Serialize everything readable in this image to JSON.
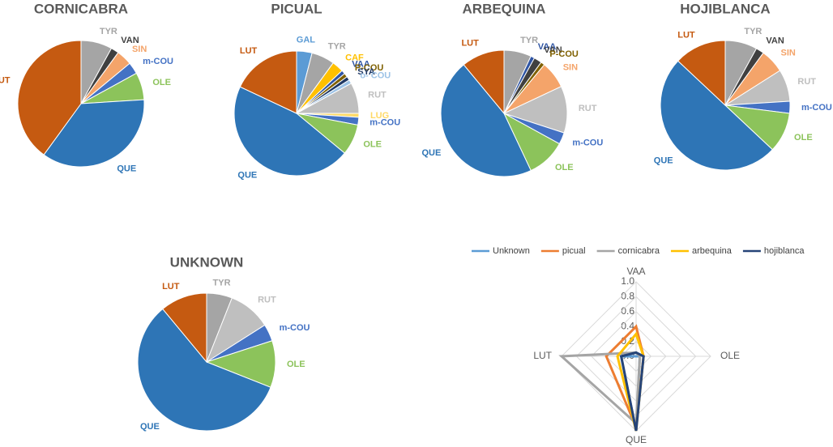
{
  "chart_data": [
    {
      "type": "pie",
      "title": "CORNICABRA",
      "categories": [
        "TYR",
        "VAN",
        "SIN",
        "m-COU",
        "OLE",
        "QUE",
        "LUT"
      ],
      "values": [
        8,
        2,
        4,
        3,
        7,
        36,
        40
      ],
      "colors": [
        "#a5a5a5",
        "#404040",
        "#f4a46a",
        "#4472c4",
        "#8cc35b",
        "#2e75b6",
        "#c55a11"
      ]
    },
    {
      "type": "pie",
      "title": "PICUAL",
      "categories": [
        "GAL",
        "TYR",
        "CAF",
        "VAA",
        "P-COU",
        "SYA",
        "o- COU",
        "RUT",
        "LUG",
        "m-COU",
        "OLE",
        "QUE",
        "LUT"
      ],
      "values": [
        4,
        6,
        3,
        1,
        1,
        1,
        1,
        8,
        1,
        2,
        8,
        46,
        18
      ],
      "colors": [
        "#5b9bd5",
        "#a5a5a5",
        "#ffc000",
        "#2f55a4",
        "#7f6000",
        "#1f3864",
        "#9dc3e6",
        "#bfbfbf",
        "#ffd966",
        "#4472c4",
        "#8cc35b",
        "#2e75b6",
        "#c55a11"
      ]
    },
    {
      "type": "pie",
      "title": "ARBEQUINA",
      "categories": [
        "TYR",
        "VAA",
        "VAN",
        "P-COU",
        "SIN",
        "RUT",
        "m-COU",
        "OLE",
        "QUE",
        "LUT"
      ],
      "values": [
        7,
        1,
        2,
        1,
        7,
        12,
        3,
        10,
        46,
        11
      ],
      "colors": [
        "#a5a5a5",
        "#2f55a4",
        "#404040",
        "#7f6000",
        "#f4a46a",
        "#bfbfbf",
        "#4472c4",
        "#8cc35b",
        "#2e75b6",
        "#c55a11"
      ]
    },
    {
      "type": "pie",
      "title": "HOJIBLANCA",
      "categories": [
        "TYR",
        "VAN",
        "SIN",
        "RUT",
        "m-COU",
        "OLE",
        "QUE",
        "LUT"
      ],
      "values": [
        8,
        2,
        6,
        8,
        3,
        10,
        50,
        13
      ],
      "colors": [
        "#a5a5a5",
        "#404040",
        "#f4a46a",
        "#bfbfbf",
        "#4472c4",
        "#8cc35b",
        "#2e75b6",
        "#c55a11"
      ]
    },
    {
      "type": "pie",
      "title": "UNKNOWN",
      "categories": [
        "TYR",
        "RUT",
        "m-COU",
        "OLE",
        "QUE",
        "LUT"
      ],
      "values": [
        6,
        10,
        4,
        11,
        58,
        11
      ],
      "colors": [
        "#a5a5a5",
        "#bfbfbf",
        "#4472c4",
        "#8cc35b",
        "#2e75b6",
        "#c55a11"
      ]
    },
    {
      "type": "radar",
      "categories": [
        "VAA",
        "OLE",
        "QUE",
        "LUT"
      ],
      "ylim": [
        0,
        1
      ],
      "yticks": [
        {
          "value": 0,
          "label": "0.0"
        },
        {
          "value": 0.2,
          "label": "0.2"
        },
        {
          "value": 0.4,
          "label": "0.4"
        },
        {
          "value": 0.6,
          "label": "0.6"
        },
        {
          "value": 0.8,
          "label": "0.8"
        },
        {
          "value": 1,
          "label": "1.0"
        }
      ],
      "grid": true,
      "legend": "top",
      "series": [
        {
          "name": "Unknown",
          "color": "#5b9bd5",
          "values": [
            0,
            0.05,
            1,
            0.2
          ]
        },
        {
          "name": "picual",
          "color": "#ed7d31",
          "values": [
            0.4,
            0.1,
            0.95,
            0.4
          ]
        },
        {
          "name": "cornicabra",
          "color": "#a5a5a5",
          "values": [
            0.05,
            0.05,
            0.9,
            1
          ]
        },
        {
          "name": "arbequina",
          "color": "#ffc000",
          "values": [
            0.3,
            0.1,
            1,
            0.25
          ]
        },
        {
          "name": "hojiblanca",
          "color": "#264478",
          "values": [
            0.05,
            0.1,
            1,
            0.2
          ]
        }
      ]
    }
  ]
}
